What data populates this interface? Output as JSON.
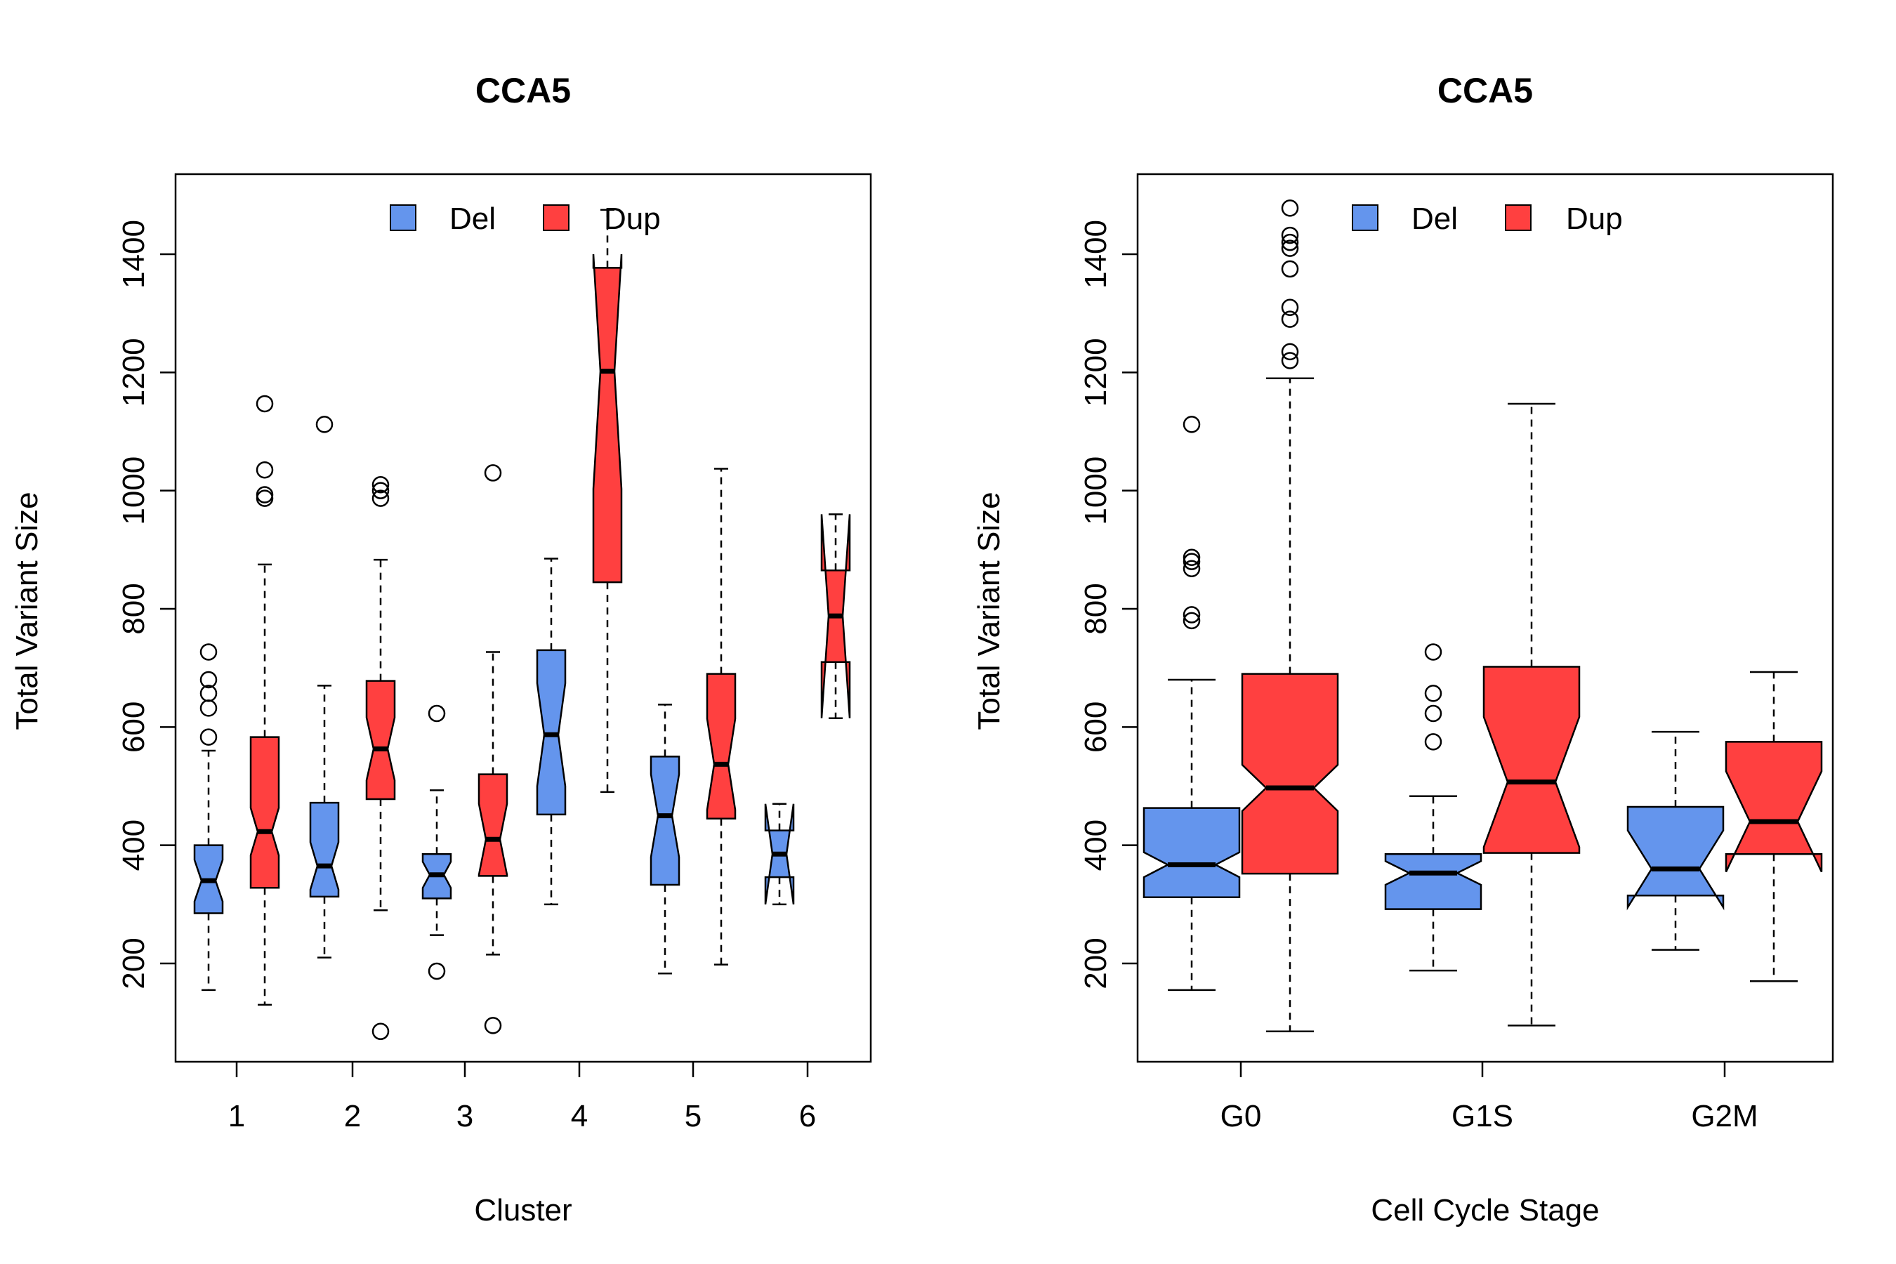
{
  "chart_data": [
    {
      "type": "boxplot",
      "title": "CCA5",
      "xlabel": "Cluster",
      "ylabel": "Total Variant Size",
      "notched": true,
      "ylim": [
        50,
        1550
      ],
      "yticks": [
        200,
        400,
        600,
        800,
        1000,
        1200,
        1400
      ],
      "categories": [
        "1",
        "2",
        "3",
        "4",
        "5",
        "6"
      ],
      "legend": {
        "position": "top",
        "entries": [
          "Del",
          "Dup"
        ]
      },
      "series": [
        {
          "name": "Del",
          "color": "#6495ED",
          "boxes": [
            {
              "whisker_low": 155,
              "q1": 285,
              "median": 340,
              "q3": 400,
              "whisker_high": 560,
              "notch": [
                305,
                375
              ],
              "outliers": [
                583,
                632,
                657,
                680,
                727
              ]
            },
            {
              "whisker_low": 210,
              "q1": 313,
              "median": 365,
              "q3": 472,
              "whisker_high": 670,
              "notch": [
                325,
                405
              ],
              "outliers": [
                1112
              ]
            },
            {
              "whisker_low": 248,
              "q1": 310,
              "median": 350,
              "q3": 385,
              "whisker_high": 493,
              "notch": [
                328,
                372
              ],
              "outliers": [
                187,
                623
              ]
            },
            {
              "whisker_low": 300,
              "q1": 452,
              "median": 587,
              "q3": 730,
              "whisker_high": 885,
              "notch": [
                500,
                674
              ],
              "outliers": []
            },
            {
              "whisker_low": 183,
              "q1": 333,
              "median": 450,
              "q3": 550,
              "whisker_high": 638,
              "notch": [
                380,
                520
              ],
              "outliers": []
            },
            {
              "whisker_low": 300,
              "q1": 346,
              "median": 385,
              "q3": 425,
              "whisker_high": 470,
              "notch": [
                300,
                470
              ],
              "outliers": []
            }
          ]
        },
        {
          "name": "Dup",
          "color": "#FF4040",
          "boxes": [
            {
              "whisker_low": 130,
              "q1": 328,
              "median": 423,
              "q3": 583,
              "whisker_high": 875,
              "notch": [
                383,
                463
              ],
              "outliers": [
                987,
                993,
                1035,
                1147
              ]
            },
            {
              "whisker_low": 290,
              "q1": 478,
              "median": 563,
              "q3": 678,
              "whisker_high": 883,
              "notch": [
                510,
                616
              ],
              "outliers": [
                85,
                987,
                1000,
                1010
              ]
            },
            {
              "whisker_low": 215,
              "q1": 348,
              "median": 410,
              "q3": 520,
              "whisker_high": 727,
              "notch": [
                350,
                470
              ],
              "outliers": [
                95,
                1030
              ]
            },
            {
              "whisker_low": 490,
              "q1": 845,
              "median": 1202,
              "q3": 1377,
              "whisker_high": 1475,
              "notch": [
                1003,
                1400
              ],
              "outliers": []
            },
            {
              "whisker_low": 198,
              "q1": 445,
              "median": 537,
              "q3": 690,
              "whisker_high": 1037,
              "notch": [
                460,
                614
              ],
              "outliers": []
            },
            {
              "whisker_low": 615,
              "q1": 710,
              "median": 788,
              "q3": 865,
              "whisker_high": 960,
              "notch": [
                615,
                960
              ],
              "outliers": []
            }
          ]
        }
      ]
    },
    {
      "type": "boxplot",
      "title": "CCA5",
      "xlabel": "Cell Cycle Stage",
      "ylabel": "Total Variant Size",
      "notched": true,
      "ylim": [
        50,
        1550
      ],
      "yticks": [
        200,
        400,
        600,
        800,
        1000,
        1200,
        1400
      ],
      "categories": [
        "G0",
        "G1S",
        "G2M"
      ],
      "legend": {
        "position": "top",
        "entries": [
          "Del",
          "Dup"
        ]
      },
      "series": [
        {
          "name": "Del",
          "color": "#6495ED",
          "boxes": [
            {
              "whisker_low": 155,
              "q1": 312,
              "median": 367,
              "q3": 463,
              "whisker_high": 680,
              "notch": [
                346,
                388
              ],
              "outliers": [
                780,
                790,
                868,
                880,
                887,
                1112
              ]
            },
            {
              "whisker_low": 188,
              "q1": 292,
              "median": 353,
              "q3": 385,
              "whisker_high": 483,
              "notch": [
                333,
                373
              ],
              "outliers": [
                575,
                623,
                657,
                727
              ]
            },
            {
              "whisker_low": 223,
              "q1": 315,
              "median": 360,
              "q3": 465,
              "whisker_high": 592,
              "notch": [
                295,
                425
              ],
              "outliers": []
            }
          ]
        },
        {
          "name": "Dup",
          "color": "#FF4040",
          "boxes": [
            {
              "whisker_low": 85,
              "q1": 352,
              "median": 497,
              "q3": 690,
              "whisker_high": 1190,
              "notch": [
                458,
                536
              ],
              "outliers": [
                1220,
                1235,
                1290,
                1310,
                1375,
                1410,
                1420,
                1432,
                1478
              ]
            },
            {
              "whisker_low": 95,
              "q1": 387,
              "median": 507,
              "q3": 702,
              "whisker_high": 1147,
              "notch": [
                397,
                617
              ],
              "outliers": []
            },
            {
              "whisker_low": 170,
              "q1": 385,
              "median": 440,
              "q3": 575,
              "whisker_high": 693,
              "notch": [
                355,
                525
              ],
              "outliers": []
            }
          ]
        }
      ]
    }
  ]
}
